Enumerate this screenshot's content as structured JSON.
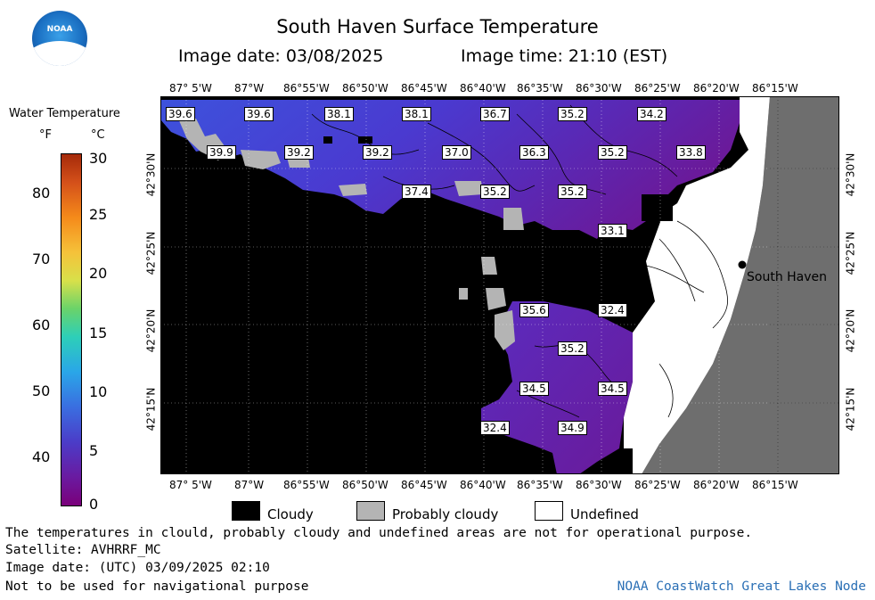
{
  "header": {
    "title": "South Haven Surface Temperature",
    "image_date": "Image date: 03/08/2025",
    "image_time": "Image time: 21:10 (EST)",
    "logo_text": "NOAA"
  },
  "legend": {
    "title": "Water Temperature",
    "unit_f": "°F",
    "unit_c": "°C",
    "f_ticks": [
      "80",
      "70",
      "60",
      "50",
      "40"
    ],
    "c_ticks": [
      "30",
      "25",
      "20",
      "15",
      "10",
      "5",
      "0"
    ]
  },
  "axes": {
    "lon_labels": [
      "87° 5'W",
      "87°W",
      "86°55'W",
      "86°50'W",
      "86°45'W",
      "86°40'W",
      "86°35'W",
      "86°30'W",
      "86°25'W",
      "86°20'W",
      "86°15'W"
    ],
    "lat_labels": [
      "42°30'N",
      "42°25'N",
      "42°20'N",
      "42°15'N"
    ]
  },
  "map": {
    "city": "South Haven",
    "temperature_labels": [
      "39.6",
      "39.6",
      "38.1",
      "38.1",
      "36.7",
      "35.2",
      "34.2",
      "39.9",
      "39.2",
      "39.2",
      "37.0",
      "36.3",
      "35.2",
      "33.8",
      "37.4",
      "35.2",
      "35.2",
      "33.1",
      "35.6",
      "32.4",
      "35.2",
      "34.5",
      "34.5",
      "32.4",
      "34.9"
    ],
    "colors": {
      "cloudy": "#000000",
      "probably_cloudy": "#b4b4b4",
      "undefined": "#ffffff",
      "land": "#6e6e6e",
      "water_warm": "#3a3acc",
      "water_cold": "#6a1a9a"
    }
  },
  "key": {
    "cloudy": "Cloudy",
    "probably_cloudy": "Probably cloudy",
    "undefined": "Undefined"
  },
  "footer": {
    "disclaimer": "The temperatures in clould, probably cloudy and undefined areas are not for operational purpose.",
    "satellite": "Satellite: AVHRRF_MC",
    "utc_date": "Image date: (UTC) 03/09/2025  02:10",
    "nav_warning": "Not to be used for navigational purpose",
    "credit": "NOAA CoastWatch Great Lakes Node"
  }
}
